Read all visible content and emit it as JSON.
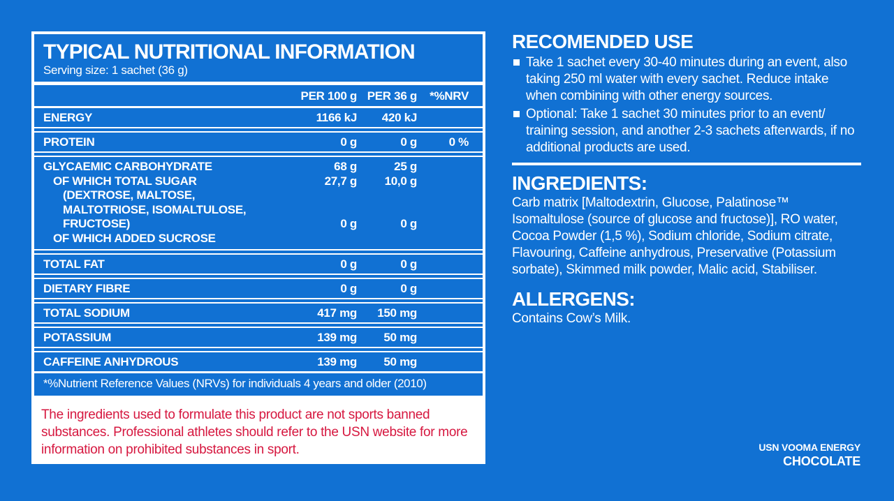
{
  "colors": {
    "background_blue": "#1171D3",
    "text_white": "#FFFFFF",
    "disclaimer_red": "#D6173F"
  },
  "nutrition_panel": {
    "title": "TYPICAL NUTRITIONAL INFORMATION",
    "serving": "Serving size: 1 sachet (36 g)",
    "columns": {
      "c1": "PER 100 g",
      "c2": "PER 36 g",
      "c3": "*%NRV"
    },
    "rows": [
      {
        "label": "ENERGY",
        "per100": "1166 kJ",
        "per36": "420 kJ",
        "nrv": ""
      },
      {
        "label": "PROTEIN",
        "per100": "0 g",
        "per36": "0 g",
        "nrv": "0 %"
      },
      {
        "label": "GLYCAEMIC CARBOHYDRATE",
        "per100": "68 g",
        "per36": "25 g",
        "nrv": ""
      },
      {
        "label": "OF WHICH TOTAL SUGAR",
        "per100": "27,7 g",
        "per36": "10,0 g",
        "nrv": ""
      },
      {
        "label": "(DEXTROSE, MALTOSE,",
        "per100": "",
        "per36": "",
        "nrv": ""
      },
      {
        "label": "MALTOTRIOSE, ISOMALTULOSE,",
        "per100": "",
        "per36": "",
        "nrv": ""
      },
      {
        "label": "FRUCTOSE)",
        "per100": "0 g",
        "per36": "0 g",
        "nrv": ""
      },
      {
        "label": "OF WHICH ADDED SUCROSE",
        "per100": "",
        "per36": "",
        "nrv": ""
      },
      {
        "label": "TOTAL FAT",
        "per100": "0 g",
        "per36": "0 g",
        "nrv": ""
      },
      {
        "label": "DIETARY FIBRE",
        "per100": "0 g",
        "per36": "0 g",
        "nrv": ""
      },
      {
        "label": "TOTAL SODIUM",
        "per100": "417 mg",
        "per36": "150 mg",
        "nrv": ""
      },
      {
        "label": "POTASSIUM",
        "per100": "139 mg",
        "per36": "50 mg",
        "nrv": ""
      },
      {
        "label": "CAFFEINE ANHYDROUS",
        "per100": "139 mg",
        "per36": "50 mg",
        "nrv": ""
      }
    ],
    "footnote": "*%Nutrient Reference Values (NRVs) for individuals 4 years and older (2010)"
  },
  "recommended_use": {
    "title": "RECOMENDED USE",
    "bullets": [
      "Take 1 sachet every 30-40 minutes during an event, also taking 250 ml water with every sachet. Reduce intake when combining with other energy sources.",
      "Optional: Take 1 sachet 30 minutes prior to an event/ training session, and another 2-3 sachets afterwards, if no additional products are used."
    ]
  },
  "ingredients": {
    "title": "INGREDIENTS:",
    "text": "Carb matrix [Maltodextrin, Glucose, Palatinose™ Isomaltulose (source of glucose and fructose)], RO water, Cocoa Powder (1,5 %), Sodium chloride, Sodium citrate, Flavouring, Caffeine anhydrous, Preservative (Potassium sorbate), Skimmed milk powder, Malic acid, Stabiliser."
  },
  "allergens": {
    "title": "ALLERGENS:",
    "text": "Contains Cow’s Milk."
  },
  "disclaimer": {
    "text": "The ingredients used to formulate this product are not sports banned substances. Professional athletes should refer to the USN website for more information on prohibited substances in sport."
  },
  "branding": {
    "product": "USN VOOMA ENERGY",
    "flavor": "CHOCOLATE"
  }
}
